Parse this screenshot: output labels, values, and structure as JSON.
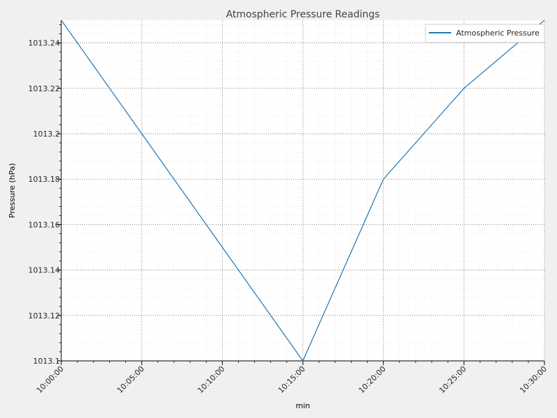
{
  "chart_data": {
    "type": "line",
    "title": "Atmospheric Pressure Readings",
    "xlabel": "min",
    "ylabel": "Pressure (hPa)",
    "x": [
      "10:00:00",
      "10:05:00",
      "10:10:00",
      "10:15:00",
      "10:20:00",
      "10:25:00",
      "10:30:00"
    ],
    "x_tick_labels": [
      "10:00:00",
      "10:05:00",
      "10:10:00",
      "10:15:00",
      "10:20:00",
      "10:25:00",
      "10:30:00"
    ],
    "series": [
      {
        "name": "Atmospheric Pressure",
        "values": [
          1013.25,
          1013.2,
          1013.15,
          1013.1,
          1013.18,
          1013.22,
          1013.25
        ],
        "color": "#1f77b4"
      }
    ],
    "ylim": [
      1013.1,
      1013.25
    ],
    "y_ticks": [
      1013.1,
      1013.12,
      1013.14,
      1013.16,
      1013.18,
      1013.2,
      1013.22,
      1013.24
    ],
    "y_tick_labels": [
      "1013.1",
      "1013.12",
      "1013.14",
      "1013.16",
      "1013.18",
      "1013.2",
      "1013.22",
      "1013.24"
    ],
    "grid": true,
    "minor_grid": true,
    "legend_position": "top-right"
  }
}
